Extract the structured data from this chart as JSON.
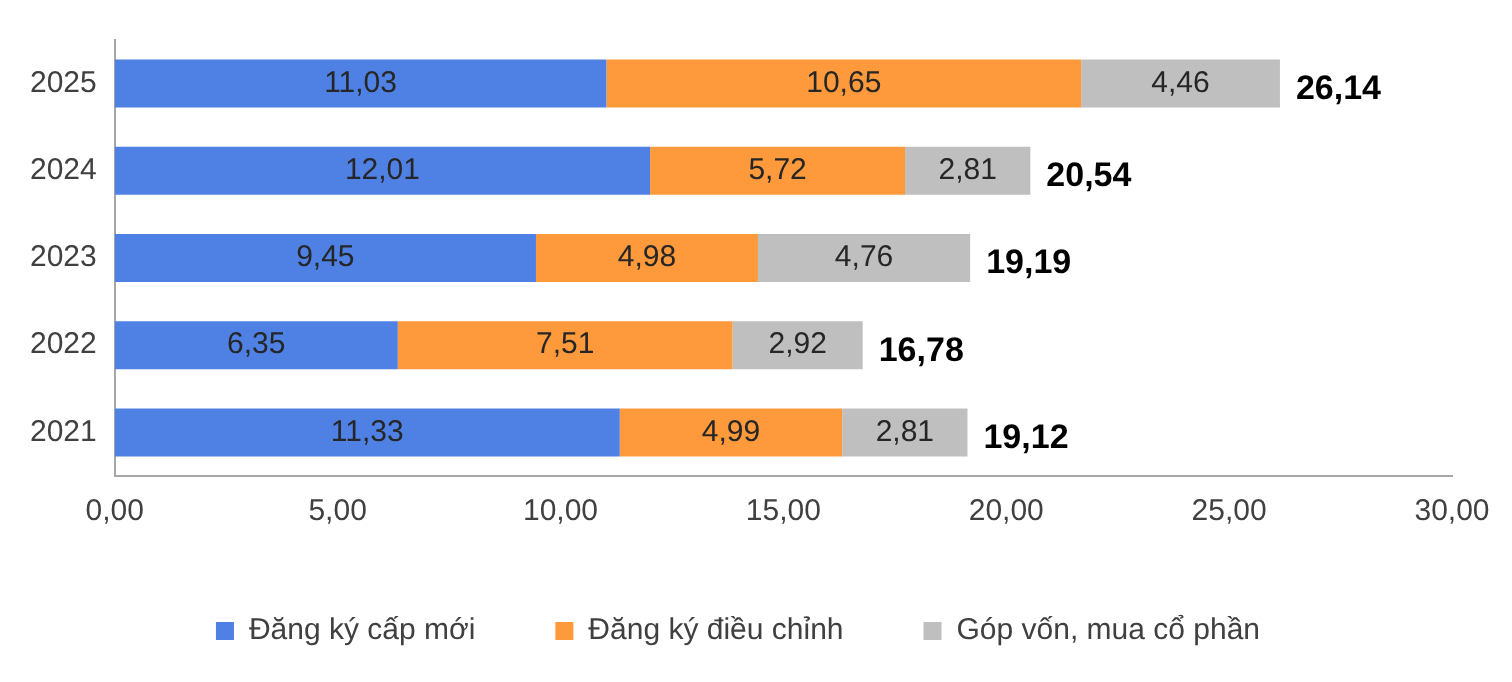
{
  "chart_data": {
    "type": "bar",
    "orientation": "horizontal",
    "stacked": true,
    "categories": [
      "2025",
      "2024",
      "2023",
      "2022",
      "2021"
    ],
    "series": [
      {
        "name": "Đăng ký cấp mới",
        "color": "#4f81e5",
        "values": [
          11.03,
          12.01,
          9.45,
          6.35,
          11.33
        ],
        "value_labels": [
          "11,03",
          "12,01",
          "9,45",
          "6,35",
          "11,33"
        ]
      },
      {
        "name": "Đăng ký điều chỉnh",
        "color": "#ff9a3c",
        "values": [
          10.65,
          5.72,
          4.98,
          7.51,
          4.99
        ],
        "value_labels": [
          "10,65",
          "5,72",
          "4,98",
          "7,51",
          "4,99"
        ]
      },
      {
        "name": "Góp vốn, mua cổ phần",
        "color": "#bfbfbf",
        "values": [
          4.46,
          2.81,
          4.76,
          2.92,
          2.81
        ],
        "value_labels": [
          "4,46",
          "2,81",
          "4,76",
          "2,92",
          "2,81"
        ]
      }
    ],
    "totals": [
      "26,14",
      "20,54",
      "19,19",
      "16,78",
      "19,12"
    ],
    "xlim": [
      0,
      30
    ],
    "xticks": [
      {
        "value": 0,
        "label": "0,00"
      },
      {
        "value": 5,
        "label": "5,00"
      },
      {
        "value": 10,
        "label": "10,00"
      },
      {
        "value": 15,
        "label": "15,00"
      },
      {
        "value": 20,
        "label": "20,00"
      },
      {
        "value": 25,
        "label": "25,00"
      },
      {
        "value": 30,
        "label": "30,00"
      }
    ],
    "grid": false,
    "legend": "bottom"
  }
}
